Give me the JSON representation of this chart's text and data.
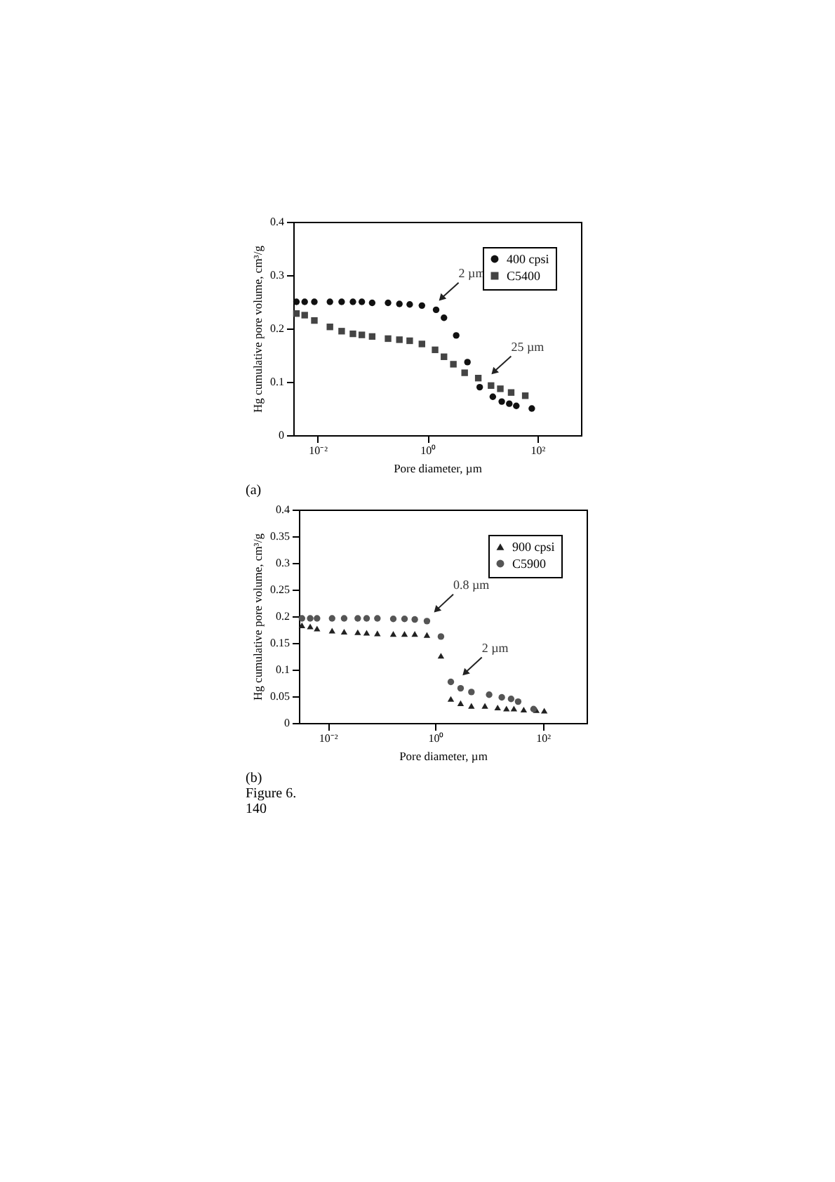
{
  "chart_data": [
    {
      "type": "scatter",
      "xlabel": "Pore diameter, µm",
      "ylabel": "Hg cumulative pore volume, cm³/g",
      "log": "x",
      "grid": false,
      "legend": "top right",
      "xlim": [
        0.0036,
        620
      ],
      "ylim": [
        0,
        0.4
      ],
      "xticks": [
        {
          "value": 0.01,
          "label": "10⁻²"
        },
        {
          "value": 1,
          "label": "10⁰"
        },
        {
          "value": 100,
          "label": "10²"
        }
      ],
      "yticks": [
        0,
        0.1,
        0.2,
        0.3,
        0.4
      ],
      "series": [
        {
          "name": "400 cpsi",
          "color": "#111111",
          "marker": "circle",
          "x": [
            0.0041,
            0.0058,
            0.0087,
            0.0167,
            0.0273,
            0.0438,
            0.0636,
            0.098,
            0.191,
            0.307,
            0.473,
            0.789,
            1.43,
            1.99,
            3.32,
            5.32,
            8.89,
            15.4,
            22.4,
            30.7,
            41.2,
            78.9
          ],
          "values": [
            0.25,
            0.25,
            0.25,
            0.25,
            0.25,
            0.25,
            0.25,
            0.248,
            0.248,
            0.246,
            0.245,
            0.243,
            0.235,
            0.22,
            0.187,
            0.137,
            0.09,
            0.072,
            0.063,
            0.059,
            0.055,
            0.05
          ]
        },
        {
          "name": "C5400",
          "color": "#444444",
          "marker": "square",
          "x": [
            0.0041,
            0.0058,
            0.0087,
            0.0167,
            0.0273,
            0.0438,
            0.0636,
            0.098,
            0.191,
            0.307,
            0.473,
            0.789,
            1.37,
            1.99,
            2.95,
            4.73,
            8.37,
            14.3,
            21.1,
            33.2,
            60
          ],
          "values": [
            0.228,
            0.225,
            0.215,
            0.203,
            0.195,
            0.19,
            0.188,
            0.185,
            0.181,
            0.179,
            0.177,
            0.171,
            0.16,
            0.147,
            0.133,
            0.117,
            0.107,
            0.093,
            0.087,
            0.08,
            0.074
          ]
        }
      ],
      "annotations": [
        {
          "text": "2 µm",
          "x": 1.84,
          "y": 0.258
        },
        {
          "text": "25 µm",
          "x": 16.6,
          "y": 0.12
        },
        "(a)"
      ]
    },
    {
      "type": "scatter",
      "xlabel": "Pore diameter, µm",
      "ylabel": "Hg cumulative pore volume, cm³/g",
      "log": "x",
      "grid": false,
      "legend": "top right",
      "xlim": [
        0.0029,
        650
      ],
      "ylim": [
        0,
        0.4
      ],
      "xticks": [
        {
          "value": 0.01,
          "label": "10⁻²"
        },
        {
          "value": 1,
          "label": "10⁰"
        },
        {
          "value": 100,
          "label": "10²"
        }
      ],
      "yticks": [
        0,
        0.05,
        0.1,
        0.15,
        0.2,
        0.25,
        0.3,
        0.35,
        0.4
      ],
      "series": [
        {
          "name": "900 cpsi",
          "color": "#222222",
          "marker": "triangle",
          "x": [
            0.0033,
            0.0047,
            0.0063,
            0.012,
            0.0201,
            0.036,
            0.0527,
            0.0835,
            0.165,
            0.267,
            0.414,
            0.697,
            1.27,
            1.94,
            2.95,
            4.68,
            8.35,
            14.4,
            21,
            28.9,
            44,
            75.5,
            106
          ],
          "values": [
            0.183,
            0.181,
            0.177,
            0.173,
            0.171,
            0.17,
            0.169,
            0.168,
            0.167,
            0.167,
            0.167,
            0.165,
            0.126,
            0.045,
            0.037,
            0.032,
            0.032,
            0.029,
            0.027,
            0.027,
            0.025,
            0.024,
            0.023
          ]
        },
        {
          "name": "C5900",
          "color": "#555555",
          "marker": "circle",
          "x": [
            0.0033,
            0.0047,
            0.0063,
            0.012,
            0.0201,
            0.036,
            0.0527,
            0.0835,
            0.165,
            0.267,
            0.414,
            0.697,
            1.27,
            1.94,
            2.95,
            4.68,
            10,
            17.2,
            25.6,
            34.6,
            67
          ],
          "values": [
            0.196,
            0.196,
            0.196,
            0.196,
            0.196,
            0.196,
            0.196,
            0.196,
            0.195,
            0.195,
            0.194,
            0.191,
            0.162,
            0.077,
            0.065,
            0.058,
            0.053,
            0.048,
            0.045,
            0.04,
            0.026
          ]
        }
      ],
      "annotations": [
        {
          "text": "0.8 µm",
          "x": 1.08,
          "y": 0.213
        },
        {
          "text": "2 µm",
          "x": 3.67,
          "y": 0.095
        },
        "(b)",
        "Figure 6.",
        "140"
      ]
    }
  ]
}
